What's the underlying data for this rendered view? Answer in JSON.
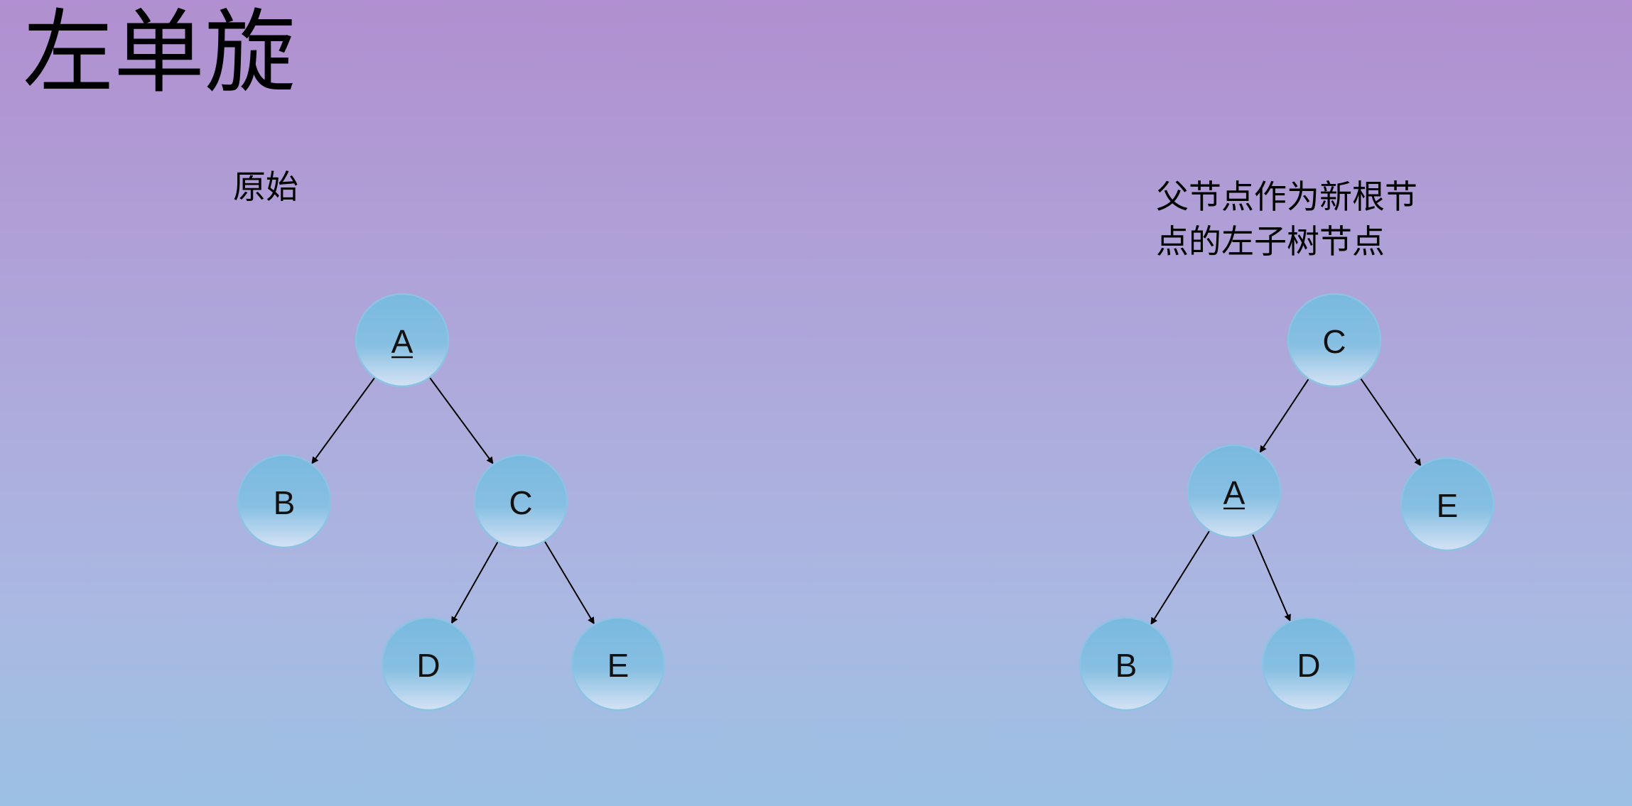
{
  "slide": {
    "title": "左单旋"
  },
  "diagrams": [
    {
      "caption": [
        "原始"
      ],
      "nodes": [
        {
          "id": "A",
          "label": "A",
          "underline": true
        },
        {
          "id": "B",
          "label": "B"
        },
        {
          "id": "C",
          "label": "C"
        },
        {
          "id": "D",
          "label": "D"
        },
        {
          "id": "E",
          "label": "E"
        }
      ],
      "edges": [
        [
          "A",
          "B"
        ],
        [
          "A",
          "C"
        ],
        [
          "C",
          "D"
        ],
        [
          "C",
          "E"
        ]
      ]
    },
    {
      "caption": [
        "父节点作为新根节",
        "点的左子树节点"
      ],
      "nodes": [
        {
          "id": "C",
          "label": "C"
        },
        {
          "id": "A",
          "label": "A",
          "underline": true
        },
        {
          "id": "E",
          "label": "E"
        },
        {
          "id": "B",
          "label": "B"
        },
        {
          "id": "D",
          "label": "D"
        }
      ],
      "edges": [
        [
          "C",
          "A"
        ],
        [
          "C",
          "E"
        ],
        [
          "A",
          "B"
        ],
        [
          "A",
          "D"
        ]
      ]
    }
  ],
  "colors": {
    "node_top": "#7ab9df",
    "node_bottom": "#d5e2f4",
    "node_stroke": "#8cc3e4",
    "edge": "#000000"
  }
}
